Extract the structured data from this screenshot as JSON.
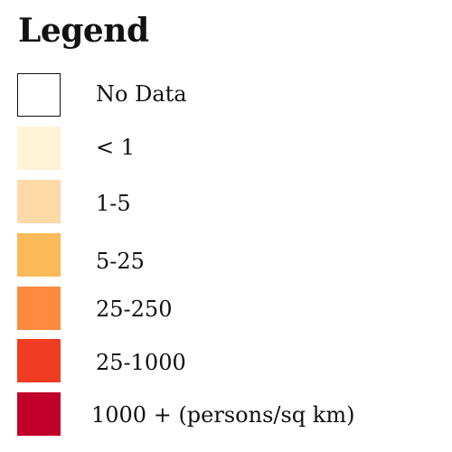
{
  "legend": {
    "title": "Legend",
    "items": [
      {
        "label": "No Data",
        "color": "#ffffff",
        "border": "#111111"
      },
      {
        "label": "< 1",
        "color": "#fff2d6"
      },
      {
        "label": "1-5",
        "color": "#fed9a8"
      },
      {
        "label": "5-25",
        "color": "#fbb95a"
      },
      {
        "label": "25-250",
        "color": "#fd8a3e"
      },
      {
        "label": "25-1000",
        "color": "#ef3c23"
      },
      {
        "label": "1000 + (persons/sq km)",
        "color": "#c10029"
      }
    ]
  }
}
